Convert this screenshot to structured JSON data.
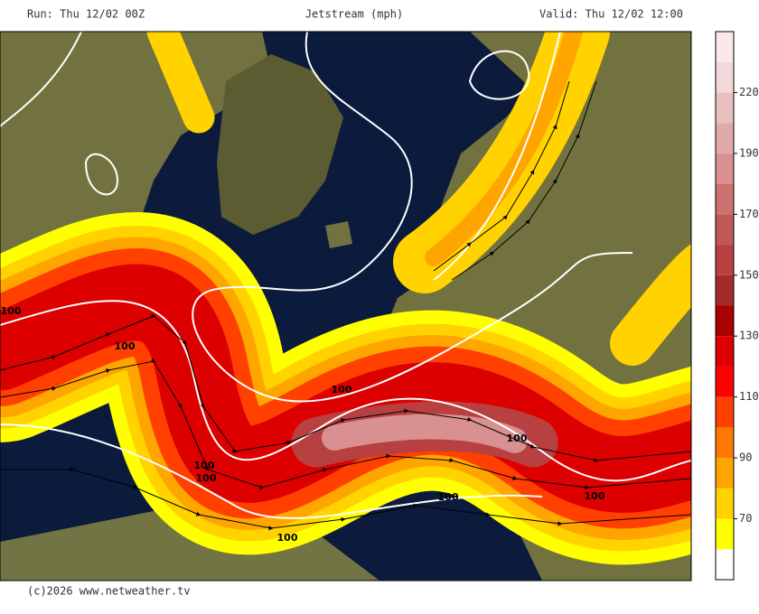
{
  "header": {
    "run": "Run: Thu 12/02 00Z",
    "title": "Jetstream (mph)",
    "valid": "Valid: Thu 12/02 12:00"
  },
  "colorbar": {
    "colors": [
      "#ffffff",
      "#ffff00",
      "#ffd200",
      "#ffa500",
      "#ff7800",
      "#ff4000",
      "#ff0000",
      "#dd0000",
      "#aa0000",
      "#a52a2a",
      "#b84040",
      "#c05858",
      "#cc7070",
      "#d89090",
      "#e0aaaa",
      "#e8c0c0",
      "#f2d8d8",
      "#fae8ea"
    ],
    "labels": [
      70,
      90,
      110,
      130,
      150,
      170,
      190,
      220
    ]
  },
  "contour_labels": [
    "100",
    "100",
    "100",
    "100",
    "100",
    "100",
    "100",
    "100",
    "100"
  ],
  "footer": "(c)2026 www.netweather.tv"
}
